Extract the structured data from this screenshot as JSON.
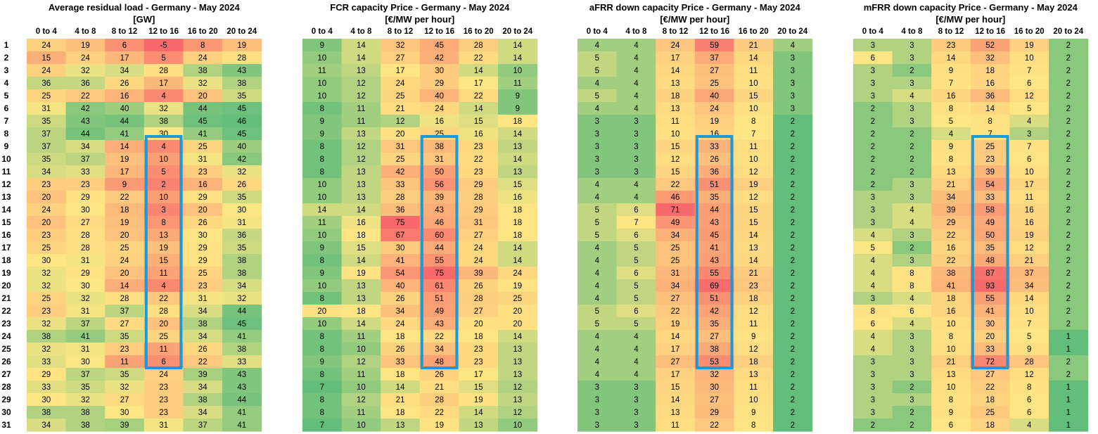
{
  "chart_data": [
    {
      "type": "heatmap",
      "title": "Average residual load - Germany - May 2024",
      "subtitle": "[GW]",
      "columns": [
        "0 to 4",
        "4 to 8",
        "8 to 12",
        "12 to 16",
        "16 to 20",
        "20 to 24"
      ],
      "rows": [
        "1",
        "2",
        "3",
        "4",
        "5",
        "6",
        "7",
        "8",
        "9",
        "10",
        "11",
        "12",
        "13",
        "14",
        "15",
        "16",
        "17",
        "18",
        "19",
        "20",
        "21",
        "22",
        "23",
        "24",
        "25",
        "26",
        "27",
        "28",
        "29",
        "30",
        "31"
      ],
      "values": [
        [
          24,
          19,
          6,
          -5,
          8,
          19
        ],
        [
          15,
          24,
          17,
          5,
          24,
          28
        ],
        [
          24,
          32,
          34,
          28,
          38,
          43
        ],
        [
          36,
          36,
          26,
          17,
          32,
          38
        ],
        [
          25,
          22,
          16,
          4,
          20,
          35
        ],
        [
          31,
          42,
          40,
          32,
          44,
          45
        ],
        [
          35,
          43,
          44,
          38,
          45,
          46
        ],
        [
          37,
          44,
          41,
          30,
          41,
          45
        ],
        [
          37,
          34,
          14,
          4,
          25,
          40
        ],
        [
          35,
          37,
          19,
          10,
          31,
          42
        ],
        [
          34,
          33,
          17,
          5,
          23,
          32
        ],
        [
          23,
          23,
          9,
          2,
          16,
          26
        ],
        [
          20,
          29,
          22,
          10,
          29,
          35
        ],
        [
          24,
          30,
          18,
          3,
          20,
          30
        ],
        [
          20,
          27,
          19,
          8,
          26,
          31
        ],
        [
          23,
          28,
          20,
          13,
          30,
          36
        ],
        [
          25,
          28,
          25,
          19,
          29,
          35
        ],
        [
          30,
          31,
          24,
          15,
          29,
          38
        ],
        [
          32,
          29,
          20,
          11,
          25,
          38
        ],
        [
          32,
          30,
          14,
          4,
          23,
          34
        ],
        [
          25,
          32,
          28,
          22,
          31,
          32
        ],
        [
          23,
          31,
          37,
          28,
          34,
          44
        ],
        [
          32,
          37,
          27,
          20,
          38,
          45
        ],
        [
          38,
          41,
          35,
          25,
          34,
          41
        ],
        [
          32,
          31,
          23,
          11,
          26,
          38
        ],
        [
          33,
          30,
          11,
          6,
          22,
          33
        ],
        [
          29,
          37,
          35,
          24,
          39,
          43
        ],
        [
          33,
          35,
          32,
          23,
          34,
          43
        ],
        [
          30,
          32,
          27,
          23,
          38,
          44
        ],
        [
          38,
          38,
          30,
          23,
          34,
          41
        ],
        [
          34,
          38,
          39,
          31,
          37,
          41
        ]
      ],
      "color_scale": "high-green",
      "highlight": {
        "column": 3,
        "row_start": 8,
        "row_end": 25,
        "color": "#1a9ad6"
      }
    },
    {
      "type": "heatmap",
      "title": "FCR capacity Price - Germany - May 2024",
      "subtitle": "[€/MW per hour]",
      "columns": [
        "0 to 4",
        "4 to 8",
        "8 to 12",
        "12 to 16",
        "16 to 20",
        "20 to 24"
      ],
      "rows": [
        "1",
        "2",
        "3",
        "4",
        "5",
        "6",
        "7",
        "8",
        "9",
        "10",
        "11",
        "12",
        "13",
        "14",
        "15",
        "16",
        "17",
        "18",
        "19",
        "20",
        "21",
        "22",
        "23",
        "24",
        "25",
        "26",
        "27",
        "28",
        "29",
        "30",
        "31"
      ],
      "values": [
        [
          9,
          14,
          32,
          45,
          28,
          14
        ],
        [
          10,
          14,
          27,
          42,
          22,
          14
        ],
        [
          11,
          13,
          17,
          30,
          14,
          10
        ],
        [
          10,
          12,
          24,
          29,
          17,
          11
        ],
        [
          10,
          12,
          25,
          40,
          22,
          9
        ],
        [
          8,
          11,
          21,
          24,
          14,
          9
        ],
        [
          9,
          11,
          12,
          16,
          15,
          18
        ],
        [
          9,
          13,
          20,
          25,
          16,
          14
        ],
        [
          8,
          12,
          31,
          38,
          23,
          13
        ],
        [
          8,
          12,
          25,
          31,
          22,
          14
        ],
        [
          8,
          13,
          42,
          50,
          23,
          13
        ],
        [
          10,
          13,
          33,
          56,
          29,
          15
        ],
        [
          10,
          13,
          28,
          39,
          28,
          16
        ],
        [
          14,
          14,
          36,
          43,
          29,
          18
        ],
        [
          11,
          16,
          75,
          46,
          31,
          18
        ],
        [
          10,
          18,
          67,
          60,
          27,
          18
        ],
        [
          9,
          15,
          30,
          44,
          24,
          14
        ],
        [
          8,
          14,
          41,
          55,
          24,
          14
        ],
        [
          9,
          19,
          54,
          75,
          39,
          24
        ],
        [
          10,
          13,
          40,
          61,
          26,
          19
        ],
        [
          8,
          13,
          26,
          51,
          28,
          25
        ],
        [
          20,
          18,
          34,
          49,
          27,
          20
        ],
        [
          10,
          14,
          24,
          43,
          20,
          20
        ],
        [
          8,
          11,
          18,
          22,
          18,
          14
        ],
        [
          8,
          10,
          26,
          34,
          23,
          13
        ],
        [
          9,
          12,
          33,
          48,
          23,
          13
        ],
        [
          8,
          11,
          18,
          26,
          17,
          13
        ],
        [
          7,
          10,
          14,
          21,
          15,
          12
        ],
        [
          8,
          12,
          21,
          28,
          19,
          13
        ],
        [
          8,
          11,
          18,
          22,
          14,
          12
        ],
        [
          7,
          10,
          13,
          19,
          13,
          10
        ]
      ],
      "color_scale": "high-red",
      "highlight": {
        "column": 3,
        "row_start": 8,
        "row_end": 25,
        "color": "#1a9ad6"
      }
    },
    {
      "type": "heatmap",
      "title": "aFRR down capacity Price - Germany - May 2024",
      "subtitle": "[€/MW per hour]",
      "columns": [
        "0 to 4",
        "4 to 8",
        "8 to 12",
        "12 to 16",
        "16 to 20",
        "20 to 24"
      ],
      "rows": [
        "1",
        "2",
        "3",
        "4",
        "5",
        "6",
        "7",
        "8",
        "9",
        "10",
        "11",
        "12",
        "13",
        "14",
        "15",
        "16",
        "17",
        "18",
        "19",
        "20",
        "21",
        "22",
        "23",
        "24",
        "25",
        "26",
        "27",
        "28",
        "29",
        "30",
        "31"
      ],
      "values": [
        [
          4,
          4,
          24,
          59,
          21,
          4
        ],
        [
          5,
          4,
          17,
          37,
          14,
          3
        ],
        [
          5,
          4,
          14,
          27,
          11,
          3
        ],
        [
          4,
          4,
          13,
          25,
          10,
          3
        ],
        [
          5,
          4,
          18,
          40,
          15,
          3
        ],
        [
          4,
          4,
          13,
          24,
          10,
          3
        ],
        [
          3,
          3,
          11,
          19,
          8,
          2
        ],
        [
          3,
          3,
          10,
          16,
          7,
          2
        ],
        [
          3,
          3,
          15,
          33,
          11,
          2
        ],
        [
          3,
          3,
          12,
          26,
          10,
          2
        ],
        [
          3,
          3,
          15,
          36,
          12,
          2
        ],
        [
          4,
          4,
          22,
          51,
          19,
          2
        ],
        [
          4,
          4,
          46,
          35,
          12,
          2
        ],
        [
          5,
          6,
          71,
          44,
          15,
          2
        ],
        [
          5,
          7,
          49,
          43,
          15,
          2
        ],
        [
          5,
          6,
          34,
          45,
          14,
          2
        ],
        [
          4,
          5,
          25,
          41,
          13,
          2
        ],
        [
          4,
          5,
          25,
          43,
          14,
          2
        ],
        [
          4,
          6,
          31,
          55,
          21,
          2
        ],
        [
          4,
          5,
          34,
          69,
          23,
          2
        ],
        [
          4,
          5,
          27,
          51,
          18,
          2
        ],
        [
          5,
          6,
          22,
          42,
          12,
          2
        ],
        [
          5,
          5,
          19,
          35,
          11,
          2
        ],
        [
          4,
          4,
          14,
          27,
          9,
          2
        ],
        [
          4,
          4,
          17,
          38,
          12,
          2
        ],
        [
          4,
          4,
          27,
          53,
          18,
          2
        ],
        [
          4,
          4,
          17,
          32,
          13,
          2
        ],
        [
          3,
          3,
          15,
          30,
          11,
          2
        ],
        [
          3,
          3,
          14,
          27,
          10,
          2
        ],
        [
          3,
          3,
          13,
          29,
          9,
          2
        ],
        [
          3,
          3,
          11,
          22,
          8,
          2
        ]
      ],
      "color_scale": "high-red",
      "highlight": {
        "column": 3,
        "row_start": 8,
        "row_end": 25,
        "color": "#1a9ad6"
      }
    },
    {
      "type": "heatmap",
      "title": "mFRR down capacity Price - Germany - May 2024",
      "subtitle": "[€/MW per hour]",
      "columns": [
        "0 to 4",
        "4 to 8",
        "8 to 12",
        "12 to 16",
        "16 to 20",
        "20 to 24"
      ],
      "rows": [
        "1",
        "2",
        "3",
        "4",
        "5",
        "6",
        "7",
        "8",
        "9",
        "10",
        "11",
        "12",
        "13",
        "14",
        "15",
        "16",
        "17",
        "18",
        "19",
        "20",
        "21",
        "22",
        "23",
        "24",
        "25",
        "26",
        "27",
        "28",
        "29",
        "30",
        "31"
      ],
      "values": [
        [
          3,
          3,
          23,
          52,
          19,
          2
        ],
        [
          6,
          3,
          14,
          32,
          10,
          2
        ],
        [
          3,
          2,
          9,
          18,
          7,
          2
        ],
        [
          3,
          3,
          7,
          16,
          6,
          2
        ],
        [
          3,
          4,
          16,
          36,
          12,
          2
        ],
        [
          2,
          3,
          8,
          14,
          5,
          2
        ],
        [
          2,
          3,
          5,
          8,
          4,
          2
        ],
        [
          2,
          2,
          4,
          7,
          3,
          2
        ],
        [
          2,
          2,
          9,
          25,
          7,
          2
        ],
        [
          2,
          2,
          8,
          23,
          6,
          2
        ],
        [
          2,
          2,
          13,
          39,
          10,
          2
        ],
        [
          2,
          3,
          21,
          54,
          17,
          2
        ],
        [
          3,
          3,
          34,
          33,
          11,
          2
        ],
        [
          3,
          4,
          39,
          58,
          16,
          2
        ],
        [
          3,
          4,
          29,
          49,
          16,
          2
        ],
        [
          4,
          3,
          22,
          50,
          19,
          2
        ],
        [
          5,
          2,
          16,
          35,
          12,
          2
        ],
        [
          4,
          3,
          22,
          48,
          21,
          2
        ],
        [
          4,
          8,
          38,
          87,
          37,
          2
        ],
        [
          4,
          8,
          41,
          93,
          34,
          2
        ],
        [
          3,
          4,
          18,
          55,
          14,
          2
        ],
        [
          8,
          6,
          16,
          41,
          10,
          2
        ],
        [
          6,
          4,
          10,
          30,
          7,
          2
        ],
        [
          4,
          3,
          8,
          20,
          5,
          1
        ],
        [
          4,
          3,
          10,
          33,
          9,
          1
        ],
        [
          3,
          3,
          21,
          72,
          28,
          2
        ],
        [
          3,
          3,
          13,
          27,
          12,
          2
        ],
        [
          3,
          2,
          10,
          22,
          8,
          1
        ],
        [
          3,
          3,
          8,
          18,
          6,
          1
        ],
        [
          3,
          2,
          9,
          25,
          6,
          1
        ],
        [
          2,
          2,
          6,
          18,
          4,
          1
        ]
      ],
      "color_scale": "high-red",
      "highlight": {
        "column": 3,
        "row_start": 8,
        "row_end": 25,
        "color": "#1a9ad6"
      }
    }
  ]
}
